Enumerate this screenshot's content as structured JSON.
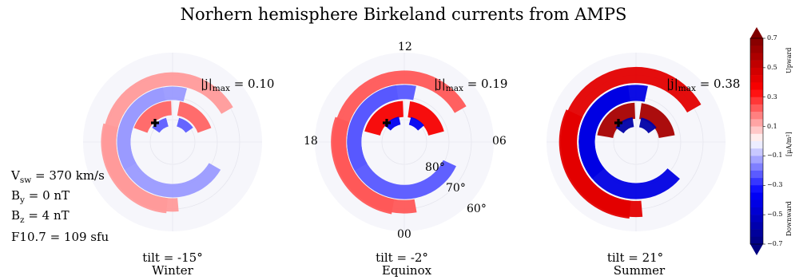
{
  "chart_data": {
    "type": "heatmap",
    "title": "Norhern hemisphere Birkeland currents from AMPS",
    "projection": "polar (magnetic latitude / local time)",
    "clock_labels": [
      "12",
      "18",
      "06",
      "00"
    ],
    "latitude_labels": [
      "80°",
      "70°",
      "60°"
    ],
    "conditions": {
      "vsw": "V",
      "vsw_sub": "sw",
      "vsw_val": " = 370 km/s",
      "by": "B",
      "by_sub": "y",
      "by_val": " = 0 nT",
      "bz": "B",
      "bz_sub": "z",
      "bz_val": " = 4 nT",
      "f107": "F10.7 = 109 sfu"
    },
    "panels": [
      {
        "season": "Winter",
        "tilt": "tilt = -15°",
        "jmax_value": 0.1,
        "jmax_text": "= 0.10"
      },
      {
        "season": "Equinox",
        "tilt": "tilt = -2°",
        "jmax_value": 0.19,
        "jmax_text": "= 0.19"
      },
      {
        "season": "Summer",
        "tilt": "tilt = 21°",
        "jmax_value": 0.38,
        "jmax_text": "= 0.38"
      }
    ],
    "jmax_label_main": "|j|",
    "jmax_label_sub": "max",
    "colorbar": {
      "unit": "[μA/m²]",
      "range": [
        -0.7,
        0.7
      ],
      "ticks": [
        "0.7",
        "0.5",
        "0.3",
        "0.1",
        "−0.1",
        "−0.3",
        "−0.5",
        "−0.7"
      ],
      "tick_values": [
        0.7,
        0.5,
        0.3,
        0.1,
        -0.1,
        -0.3,
        -0.5,
        -0.7
      ],
      "upper_label": "Upward",
      "lower_label": "Downward",
      "colormap": "seismic (blue-white-red)"
    }
  }
}
